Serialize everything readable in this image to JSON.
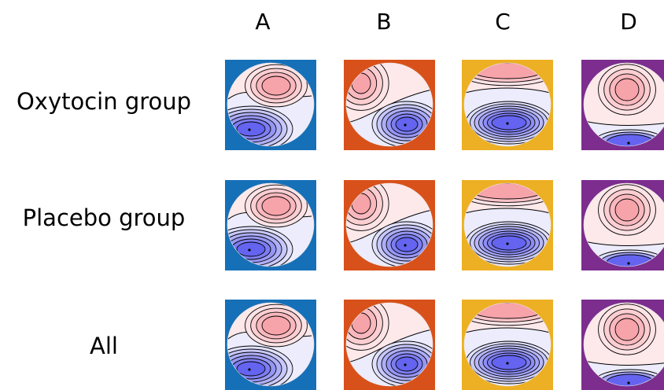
{
  "columns": [
    "A",
    "B",
    "C",
    "D"
  ],
  "rows": [
    "Oxytocin group",
    "Placebo group",
    "All"
  ],
  "column_colors": {
    "A": "#1670b8",
    "B": "#d8511a",
    "C": "#edb024",
    "D": "#7c2d8e"
  },
  "scale_colors": {
    "positive": "#f7a3aa",
    "neutral": "#ffffff",
    "negative": "#6464f0",
    "contour": "#000000"
  },
  "maps": [
    {
      "row": "Oxytocin group",
      "column": "A",
      "icon": "topomap-icon"
    },
    {
      "row": "Oxytocin group",
      "column": "B",
      "icon": "topomap-icon"
    },
    {
      "row": "Oxytocin group",
      "column": "C",
      "icon": "topomap-icon"
    },
    {
      "row": "Oxytocin group",
      "column": "D",
      "icon": "topomap-icon"
    },
    {
      "row": "Placebo group",
      "column": "A",
      "icon": "topomap-icon"
    },
    {
      "row": "Placebo group",
      "column": "B",
      "icon": "topomap-icon"
    },
    {
      "row": "Placebo group",
      "column": "C",
      "icon": "topomap-icon"
    },
    {
      "row": "Placebo group",
      "column": "D",
      "icon": "topomap-icon"
    },
    {
      "row": "All",
      "column": "A",
      "icon": "topomap-icon"
    },
    {
      "row": "All",
      "column": "B",
      "icon": "topomap-icon"
    },
    {
      "row": "All",
      "column": "C",
      "icon": "topomap-icon"
    },
    {
      "row": "All",
      "column": "D",
      "icon": "topomap-icon"
    }
  ]
}
